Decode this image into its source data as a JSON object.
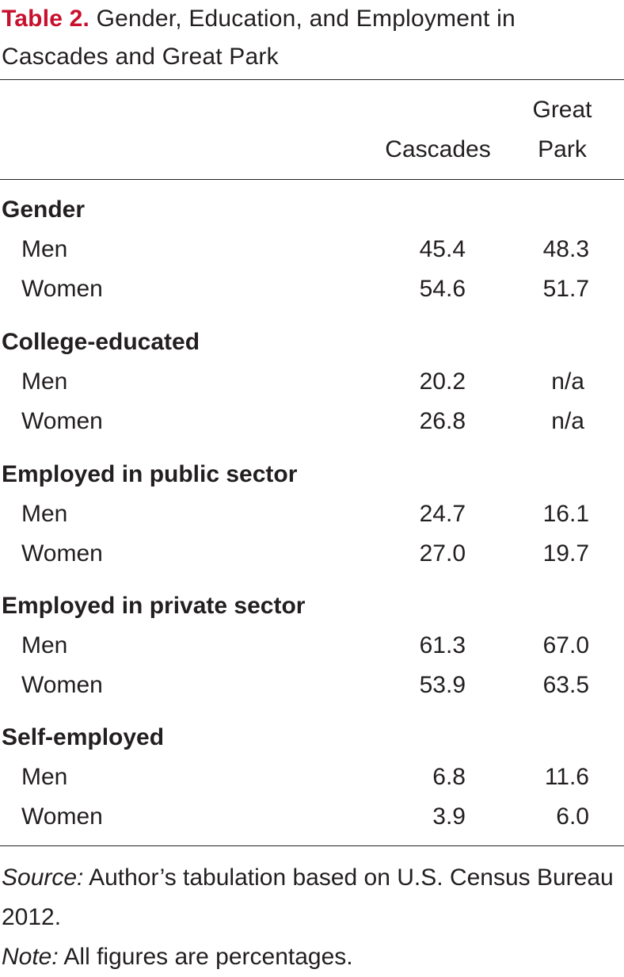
{
  "title": {
    "label": "Table 2.",
    "text": "Gender, Education, and Employment in Cascades and Great Park"
  },
  "columns": {
    "col1": "Cascades",
    "col2_line1": "Great",
    "col2_line2": "Park"
  },
  "groups": [
    {
      "name": "Gender",
      "rows": [
        {
          "label": "Men",
          "cascades": "45.4",
          "great_park": "48.3"
        },
        {
          "label": "Women",
          "cascades": "54.6",
          "great_park": "51.7"
        }
      ]
    },
    {
      "name": "College-educated",
      "rows": [
        {
          "label": "Men",
          "cascades": "20.2",
          "great_park": "n/a"
        },
        {
          "label": "Women",
          "cascades": "26.8",
          "great_park": "n/a"
        }
      ]
    },
    {
      "name": "Employed in public sector",
      "rows": [
        {
          "label": "Men",
          "cascades": "24.7",
          "great_park": "16.1"
        },
        {
          "label": "Women",
          "cascades": "27.0",
          "great_park": "19.7"
        }
      ]
    },
    {
      "name": "Employed in private sector",
      "rows": [
        {
          "label": "Men",
          "cascades": "61.3",
          "great_park": "67.0"
        },
        {
          "label": "Women",
          "cascades": "53.9",
          "great_park": "63.5"
        }
      ]
    },
    {
      "name": "Self-employed",
      "rows": [
        {
          "label": "Men",
          "cascades": "6.8",
          "great_park": "11.6"
        },
        {
          "label": "Women",
          "cascades": "3.9",
          "great_park": "6.0"
        }
      ]
    }
  ],
  "source": {
    "label": "Source:",
    "text": "Author’s tabulation based on U.S. Census Bureau 2012."
  },
  "note": {
    "label": "Note:",
    "text": "All figures are percentages."
  }
}
